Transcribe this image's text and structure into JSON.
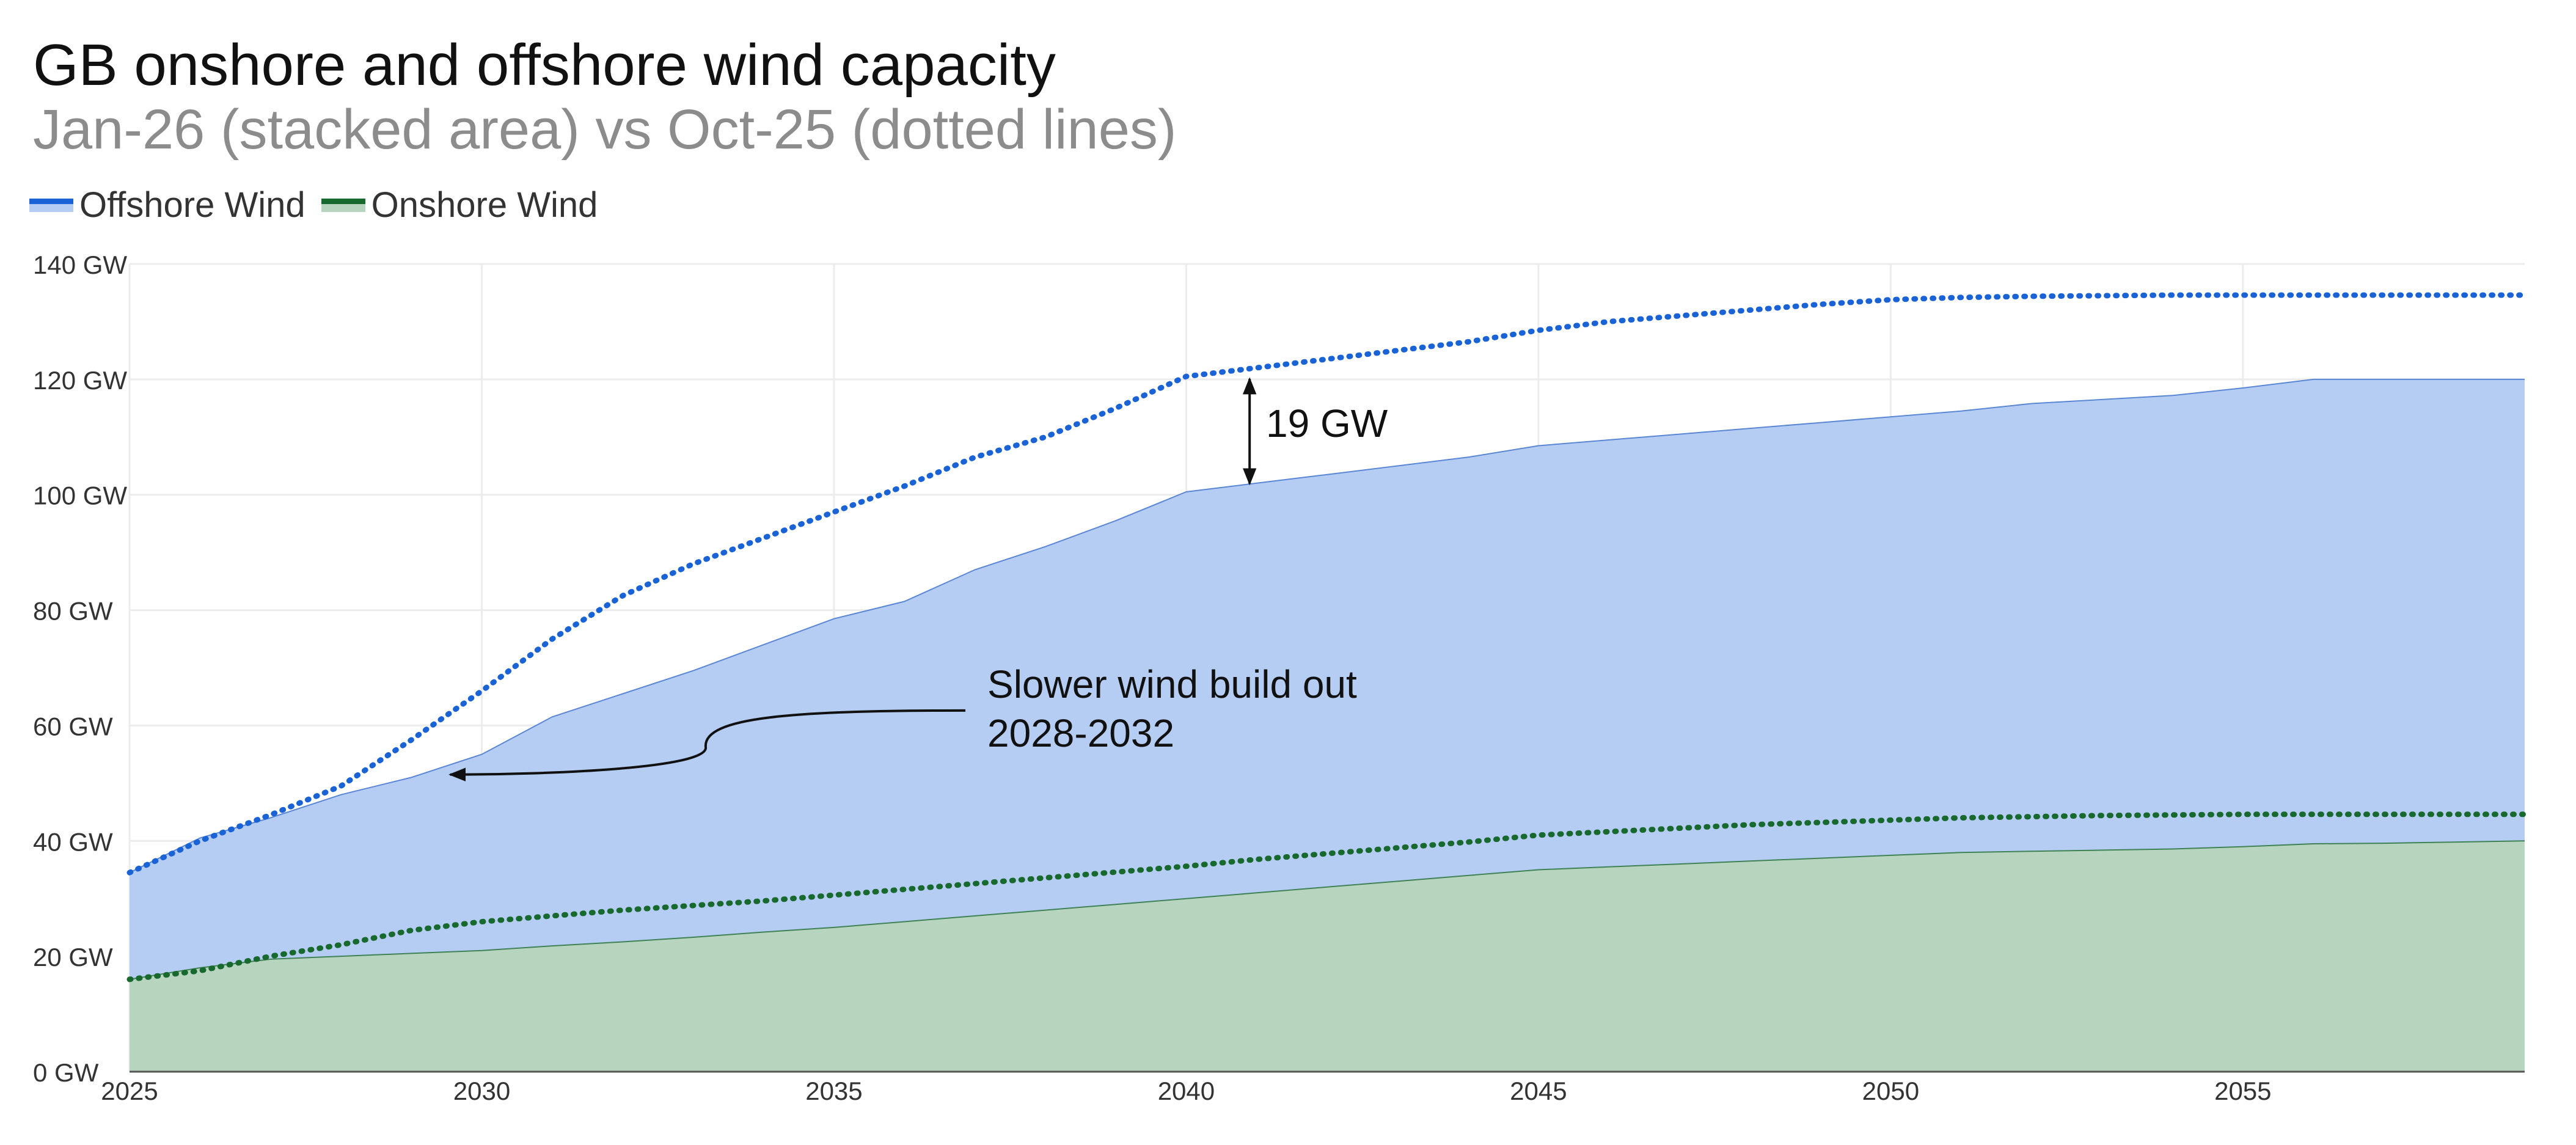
{
  "chart_data": {
    "type": "area",
    "title": "GB onshore and offshore wind capacity",
    "subtitle": "Jan-26 (stacked area) vs Oct-25 (dotted lines)",
    "xlabel": "",
    "ylabel": "",
    "xlim": [
      2025,
      2059
    ],
    "ylim": [
      0,
      140
    ],
    "x_ticks": [
      2025,
      2030,
      2035,
      2040,
      2045,
      2050,
      2055
    ],
    "y_ticks": [
      {
        "value": 0,
        "label": "0 GW"
      },
      {
        "value": 20,
        "label": "20 GW"
      },
      {
        "value": 40,
        "label": "40 GW"
      },
      {
        "value": 60,
        "label": "60 GW"
      },
      {
        "value": 80,
        "label": "80 GW"
      },
      {
        "value": 100,
        "label": "100 GW"
      },
      {
        "value": 120,
        "label": "120 GW"
      },
      {
        "value": 140,
        "label": "140 GW"
      }
    ],
    "grid": true,
    "legend_position": "top-left",
    "legend": [
      {
        "label": "Offshore Wind",
        "line_color": "#1a63d6",
        "fill_color": "#b6cdf3"
      },
      {
        "label": "Onshore Wind",
        "line_color": "#17692e",
        "fill_color": "#b7d4be"
      }
    ],
    "x": [
      2025,
      2026,
      2027,
      2028,
      2029,
      2030,
      2031,
      2032,
      2033,
      2034,
      2035,
      2036,
      2037,
      2038,
      2039,
      2040,
      2041,
      2042,
      2043,
      2044,
      2045,
      2046,
      2047,
      2048,
      2049,
      2050,
      2051,
      2052,
      2053,
      2054,
      2055,
      2056,
      2057,
      2058,
      2059
    ],
    "stacked_area": [
      {
        "name": "Onshore Wind",
        "color": "#17692e",
        "fill": "#b7d4be",
        "values": [
          16.0,
          18.0,
          19.5,
          20.0,
          20.5,
          21.0,
          21.8,
          22.5,
          23.3,
          24.2,
          25.0,
          26.0,
          27.0,
          28.0,
          29.0,
          30.0,
          31.0,
          32.0,
          33.0,
          34.0,
          35.0,
          35.5,
          36.0,
          36.5,
          37.0,
          37.5,
          38.0,
          38.2,
          38.4,
          38.6,
          39.0,
          39.5,
          39.6,
          39.8,
          40.0
        ]
      },
      {
        "name": "Offshore Wind",
        "color": "#1a63d6",
        "fill": "#b6cdf3",
        "values": [
          34.5,
          40.5,
          44.0,
          48.0,
          51.0,
          55.0,
          61.5,
          65.5,
          69.5,
          74.0,
          78.5,
          81.5,
          87.0,
          91.0,
          95.5,
          100.5,
          102.0,
          103.5,
          105.0,
          106.5,
          108.5,
          109.5,
          110.5,
          111.5,
          112.5,
          113.5,
          114.5,
          115.8,
          116.5,
          117.2,
          118.5,
          120.0,
          120.0,
          120.0,
          120.0
        ]
      }
    ],
    "dotted_lines": [
      {
        "name": "Onshore Wind",
        "color": "#17692e",
        "values": [
          16.0,
          17.5,
          20.0,
          22.0,
          24.5,
          26.0,
          27.0,
          28.0,
          28.8,
          29.6,
          30.6,
          31.6,
          32.6,
          33.6,
          34.6,
          35.6,
          36.8,
          37.8,
          38.8,
          39.8,
          41.0,
          41.6,
          42.2,
          42.8,
          43.2,
          43.6,
          44.0,
          44.2,
          44.4,
          44.5,
          44.6,
          44.6,
          44.6,
          44.6,
          44.6
        ]
      },
      {
        "name": "Offshore Wind",
        "color": "#1a63d6",
        "values": [
          34.5,
          40.0,
          44.5,
          49.5,
          57.5,
          66.0,
          75.0,
          82.5,
          88.0,
          92.5,
          97.0,
          101.5,
          106.5,
          110.0,
          115.0,
          120.5,
          122.0,
          123.5,
          125.0,
          126.5,
          128.5,
          130.0,
          131.0,
          132.0,
          133.0,
          133.8,
          134.2,
          134.4,
          134.5,
          134.6,
          134.6,
          134.6,
          134.6,
          134.6,
          134.6
        ]
      }
    ],
    "annotations": [
      {
        "text_lines": [
          "Slower wind build out",
          "2028-2032"
        ],
        "points_to": {
          "x": 2029.5,
          "y": 51.5
        }
      },
      {
        "text": "19 GW",
        "x": 2040.9,
        "y_from": 101.5,
        "y_to": 120.5
      }
    ]
  }
}
